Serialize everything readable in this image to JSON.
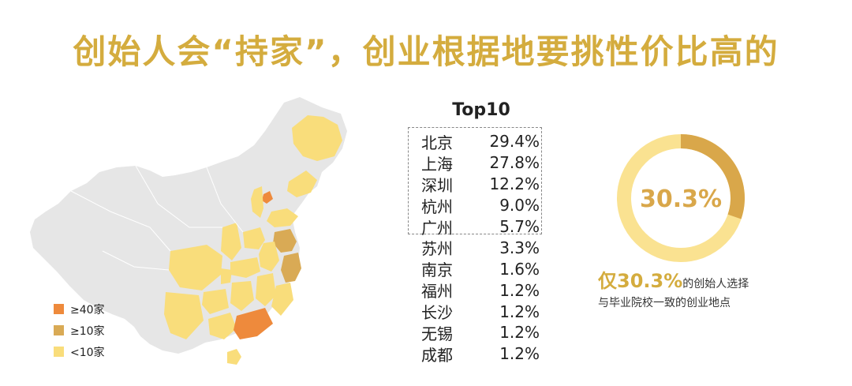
{
  "title": "创始人会“持家”，创业根据地要挑性价比高的",
  "colors": {
    "accent": "#D4AC3E",
    "high": "#EE8A3C",
    "mid": "#D9AA55",
    "low": "#F9DD7B",
    "base": "#E6E6E6",
    "ring_track": "#FAE291",
    "ring_fill": "#D9A74A"
  },
  "legend": [
    {
      "label": "≥40家",
      "color": "#EE8A3C"
    },
    {
      "label": "≥10家",
      "color": "#D9AA55"
    },
    {
      "label": "<10家",
      "color": "#F9DD7B"
    }
  ],
  "chart_data": [
    {
      "type": "table",
      "title": "Top10",
      "categories": [
        "北京",
        "上海",
        "深圳",
        "杭州",
        "广州",
        "苏州",
        "南京",
        "福州",
        "长沙",
        "无锡",
        "成都"
      ],
      "values": [
        29.4,
        27.8,
        12.2,
        9.0,
        5.7,
        3.3,
        1.6,
        1.2,
        1.2,
        1.2,
        1.2
      ],
      "labels": [
        "29.4%",
        "27.8%",
        "12.2%",
        "9.0%",
        "5.7%",
        "3.3%",
        "1.6%",
        "1.2%",
        "1.2%",
        "1.2%",
        "1.2%"
      ],
      "highlighted_top": 5
    },
    {
      "type": "pie",
      "values": [
        30.3,
        69.7
      ],
      "label": "30.3%"
    }
  ],
  "note": {
    "prefix": "仅",
    "value": "30.3%",
    "line1": "的创始人选择",
    "line2": "与毕业院校一致的创业地点"
  }
}
